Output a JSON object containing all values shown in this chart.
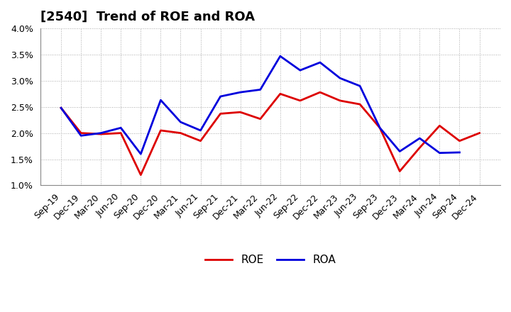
{
  "title": "[2540]  Trend of ROE and ROA",
  "x_labels": [
    "Sep-19",
    "Dec-19",
    "Mar-20",
    "Jun-20",
    "Sep-20",
    "Dec-20",
    "Mar-21",
    "Jun-21",
    "Sep-21",
    "Dec-21",
    "Mar-22",
    "Jun-22",
    "Sep-22",
    "Dec-22",
    "Mar-23",
    "Jun-23",
    "Sep-23",
    "Dec-23",
    "Mar-24",
    "Jun-24",
    "Sep-24",
    "Dec-24"
  ],
  "roe": [
    2.48,
    2.0,
    1.98,
    2.0,
    1.2,
    2.05,
    2.0,
    1.85,
    2.37,
    2.4,
    2.27,
    2.75,
    2.62,
    2.78,
    2.62,
    2.55,
    2.1,
    1.27,
    1.72,
    2.14,
    1.85,
    2.0
  ],
  "roa": [
    2.48,
    1.95,
    2.0,
    2.1,
    1.6,
    2.63,
    2.21,
    2.05,
    2.7,
    2.78,
    2.83,
    3.47,
    3.2,
    3.35,
    3.05,
    2.9,
    2.1,
    1.65,
    1.9,
    1.62,
    1.63,
    null
  ],
  "roe_color": "#dd0000",
  "roa_color": "#0000dd",
  "bg_color": "#ffffff",
  "plot_bg_color": "#ffffff",
  "grid_color": "#aaaaaa",
  "ylim": [
    1.0,
    4.0
  ],
  "yticks": [
    1.0,
    1.5,
    2.0,
    2.5,
    3.0,
    3.5,
    4.0
  ],
  "title_fontsize": 13,
  "tick_fontsize": 9,
  "legend_fontsize": 11,
  "linewidth": 2.0
}
